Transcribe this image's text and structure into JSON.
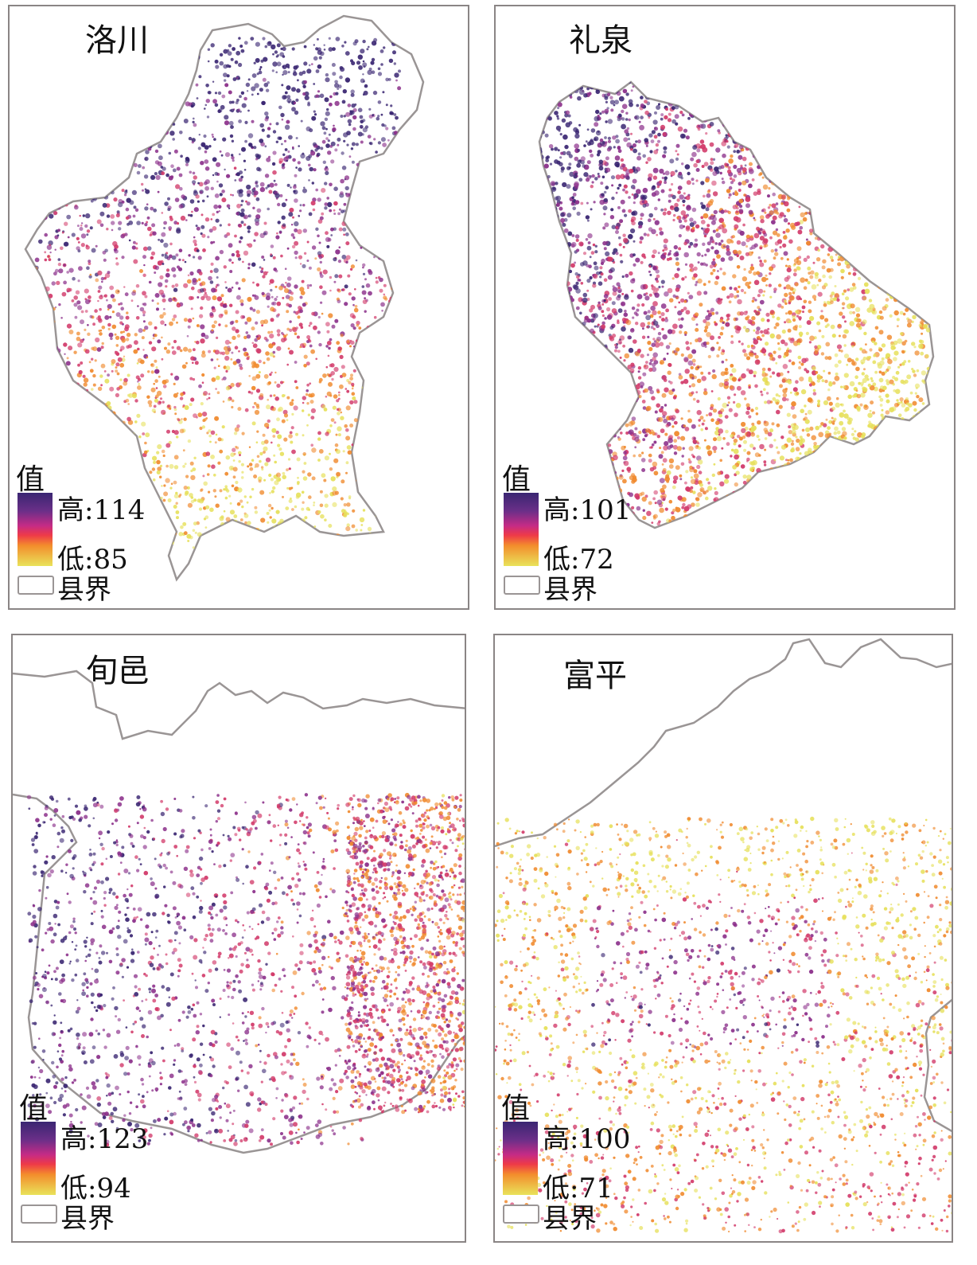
{
  "panels": [
    {
      "id": "luochuan",
      "title": "洛川",
      "legend": {
        "title": "值",
        "high": "高:114",
        "low": "低:85",
        "boundary": "县界"
      }
    },
    {
      "id": "liquan",
      "title": "礼泉",
      "legend": {
        "title": "值",
        "high": "高:101",
        "low": "低:72",
        "boundary": "县界"
      }
    },
    {
      "id": "xunyi",
      "title": "旬邑",
      "legend": {
        "title": "值",
        "high": "高:123",
        "low": "低:94",
        "boundary": "县界"
      }
    },
    {
      "id": "fuping",
      "title": "富平",
      "legend": {
        "title": "值",
        "high": "高:100",
        "low": "低:71",
        "boundary": "县界"
      }
    }
  ],
  "colors": {
    "high": "#3a2672",
    "mid_high": "#8b2f8a",
    "mid": "#d23a6a",
    "mid_low": "#f08a2e",
    "low": "#e6e05a",
    "boundary": "#9a9595"
  }
}
